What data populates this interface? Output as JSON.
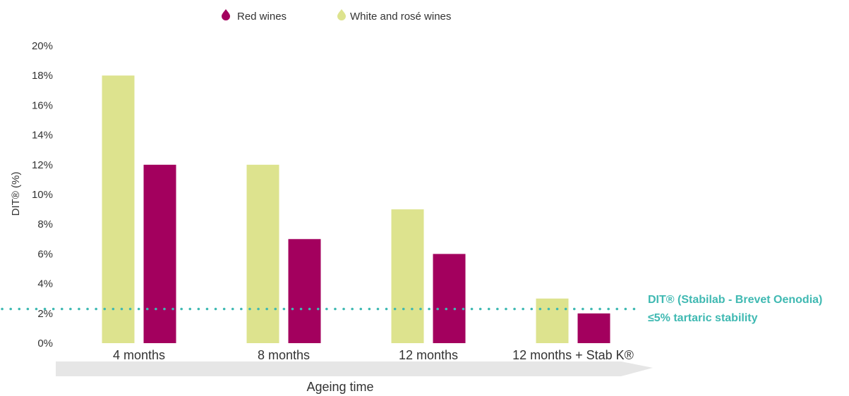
{
  "chart_data": {
    "type": "bar",
    "categories": [
      "4 months",
      "8 months",
      "12 months",
      "12 months + Stab K®"
    ],
    "series": [
      {
        "name": "White and rosé wines",
        "color": "#dde38e",
        "values": [
          18,
          12,
          9,
          3
        ]
      },
      {
        "name": "Red wines",
        "color": "#a3005e",
        "values": [
          12,
          7,
          6,
          2
        ]
      }
    ],
    "legend_order": [
      "Red wines",
      "White and rosé wines"
    ],
    "legend_position": "top",
    "ylabel": "DIT® (%)",
    "ylim": [
      0,
      20
    ],
    "yticks": [
      0,
      2,
      4,
      6,
      8,
      10,
      12,
      14,
      16,
      18,
      20
    ],
    "ytick_labels": [
      "0%",
      "2%",
      "4%",
      "6%",
      "8%",
      "10%",
      "12%",
      "14%",
      "16%",
      "18%",
      "20%"
    ],
    "grid": false,
    "reference_line": {
      "value": 2.3,
      "style": "dotted",
      "color": "#3fb9b2",
      "label_line1": "DIT® (Stabilab - Brevet Oenodia)",
      "label_line2": "≤5% tartaric stability"
    },
    "x_arrow_label": "Ageing time"
  }
}
